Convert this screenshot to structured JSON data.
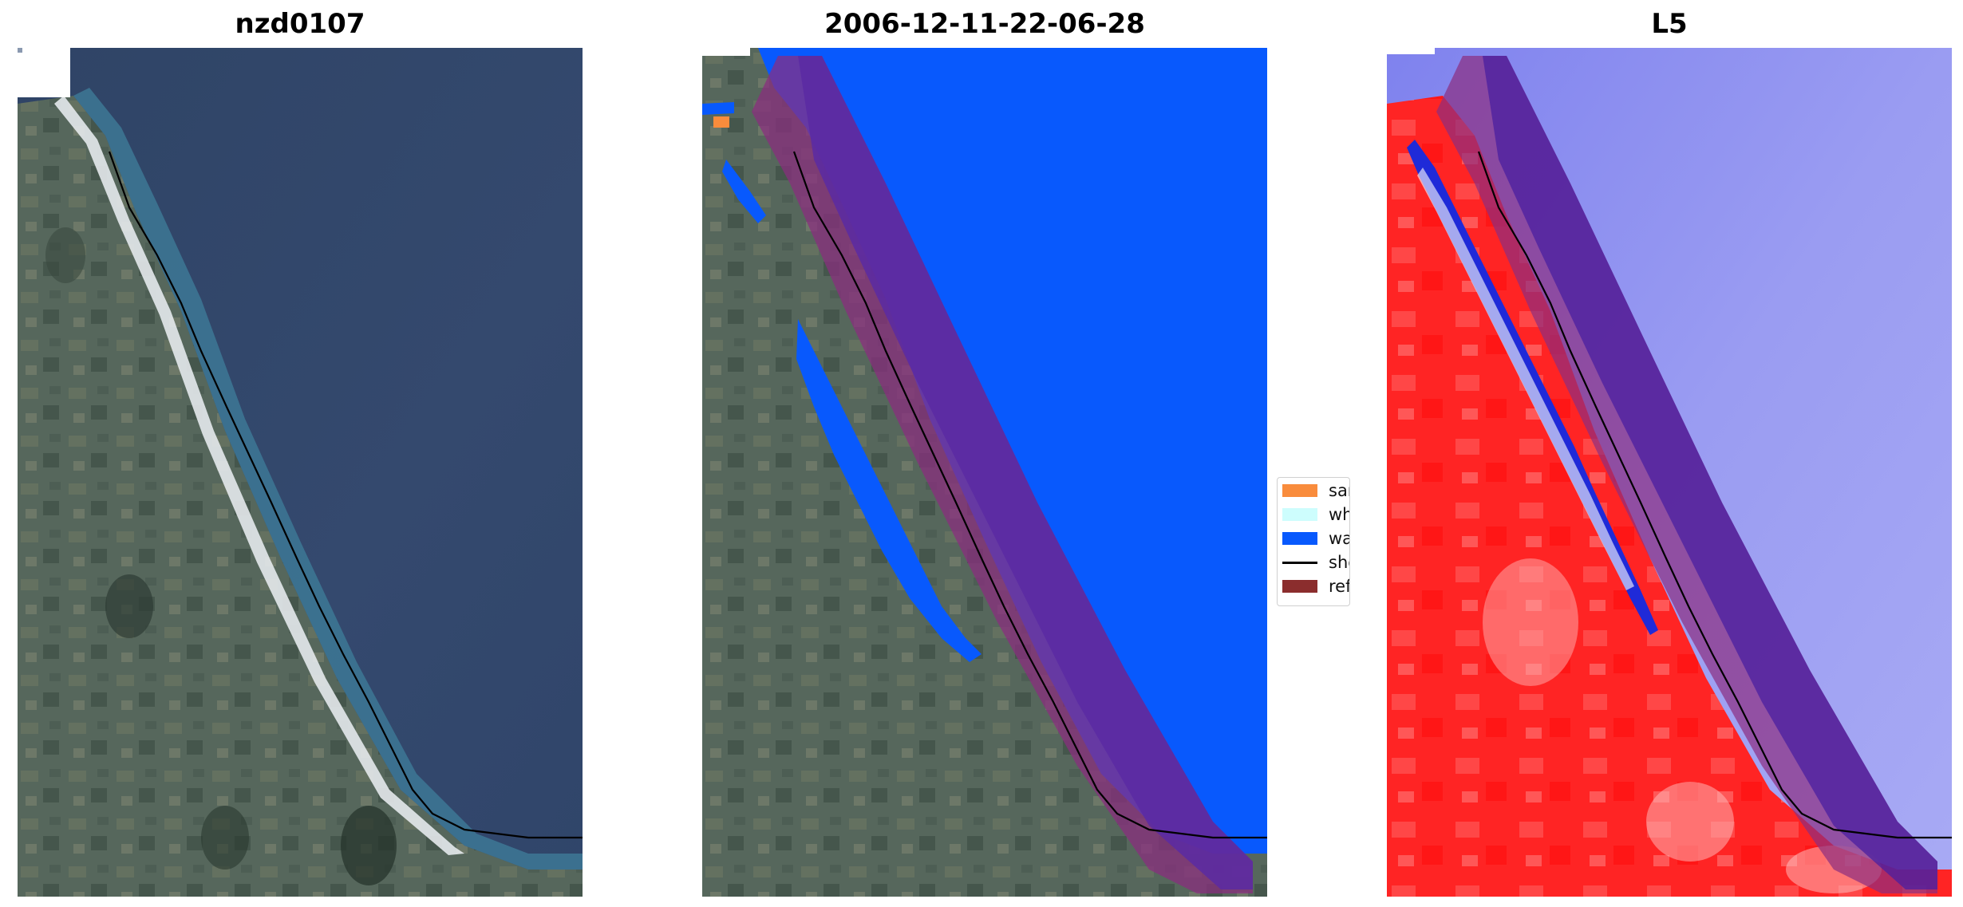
{
  "panels": [
    {
      "title": "nzd0107"
    },
    {
      "title": "2006-12-11-22-06-28"
    },
    {
      "title": "L5"
    }
  ],
  "legend": {
    "items": [
      {
        "label": "sand",
        "color": "#f98c3c"
      },
      {
        "label": "whitewater",
        "color": "#cdfdfd"
      },
      {
        "label": "water",
        "color": "#0859fd"
      },
      {
        "label": "shoreline",
        "color": "#000000"
      },
      {
        "label": "reference shoreline buffer",
        "color": "#8b2d2d"
      }
    ]
  },
  "colors": {
    "sea": "#33476b",
    "land": "#55665a",
    "surf": "#e6ecef",
    "water_class": "#0859fd",
    "buffer": "#7a2e88",
    "buffer_on_water": "#5a2aa0",
    "index_land": "#ff2d2d",
    "index_water": "#8c8ef0"
  }
}
